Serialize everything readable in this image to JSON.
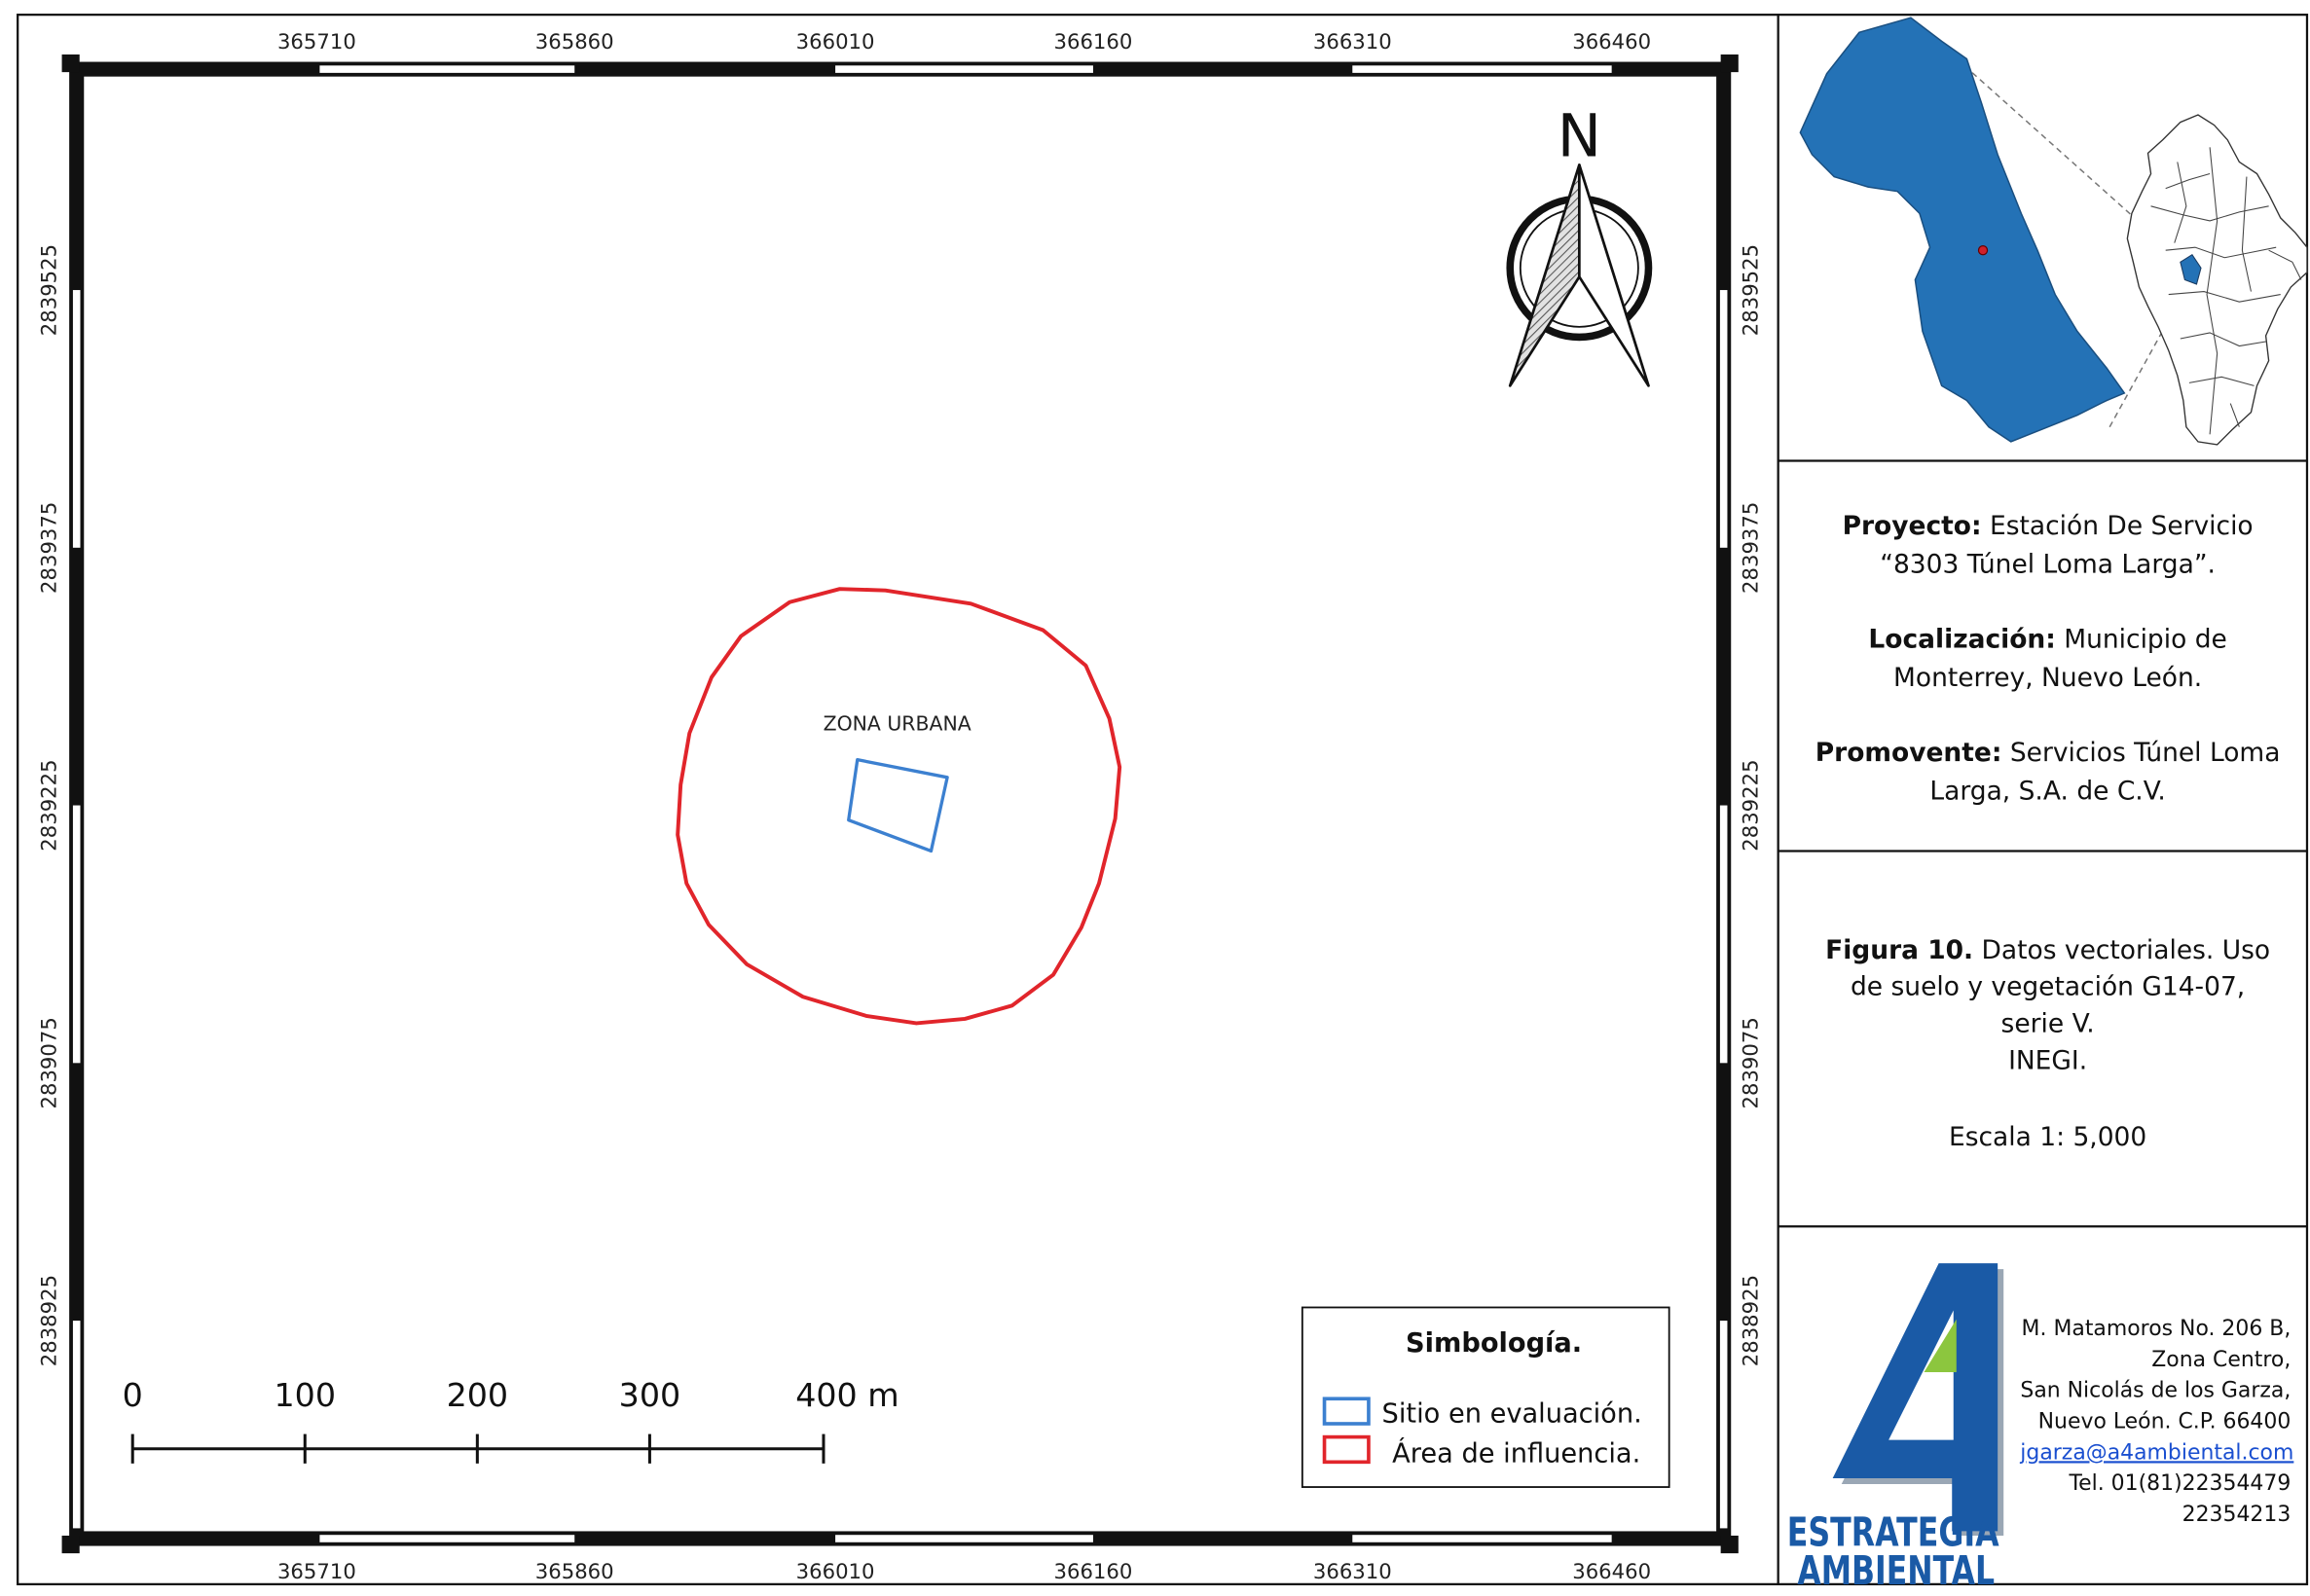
{
  "map": {
    "x_ticks": [
      "365710",
      "365860",
      "366010",
      "366160",
      "366310",
      "366460"
    ],
    "y_ticks": [
      "2839525",
      "2839375",
      "2839225",
      "2839075",
      "2838925"
    ],
    "zone_label": "ZONA URBANA",
    "north_label": "N",
    "scale_bar": {
      "labels": [
        "0",
        "100",
        "200",
        "300",
        "400 m"
      ]
    },
    "legend": {
      "title": "Simbología.",
      "items": [
        {
          "label": "Sitio en evaluación.",
          "color": "#3c80d0"
        },
        {
          "label": "Área de influencia.",
          "color": "#e1252b"
        }
      ]
    },
    "colors": {
      "site": "#3c80d0",
      "influence": "#e1252b",
      "municipality": "#2472b6",
      "location_dot": "#d0202a"
    }
  },
  "info": {
    "proyecto": {
      "label": "Proyecto:",
      "line1": "Estación De Servicio",
      "line2": "“8303 Túnel Loma Larga”."
    },
    "localizacion": {
      "label": "Localización:",
      "line1": "Municipio de",
      "line2": "Monterrey, Nuevo León."
    },
    "promovente": {
      "label": "Promovente:",
      "line1": "Servicios Túnel Loma",
      "line2": "Larga, S.A. de C.V."
    }
  },
  "figure": {
    "label": "Figura 10.",
    "line1": "Datos vectoriales. Uso",
    "line2": "de suelo y vegetación G14-07,",
    "line3": "serie V.",
    "line4": "INEGI.",
    "scale": "Escala 1: 5,000"
  },
  "company": {
    "logo_text": [
      "ESTRATEGIA",
      "AMBIENTAL"
    ],
    "address": [
      "M. Matamoros No. 206 B,",
      "Zona Centro,",
      "San Nicolás de los Garza,",
      "Nuevo León. C.P. 66400"
    ],
    "email": "jgarza@a4ambiental.com",
    "phone": [
      "Tel. 01(81)22354479",
      "22354213"
    ],
    "colors": {
      "logo_blue": "#1a5aa6",
      "logo_green": "#8cc63e"
    }
  }
}
